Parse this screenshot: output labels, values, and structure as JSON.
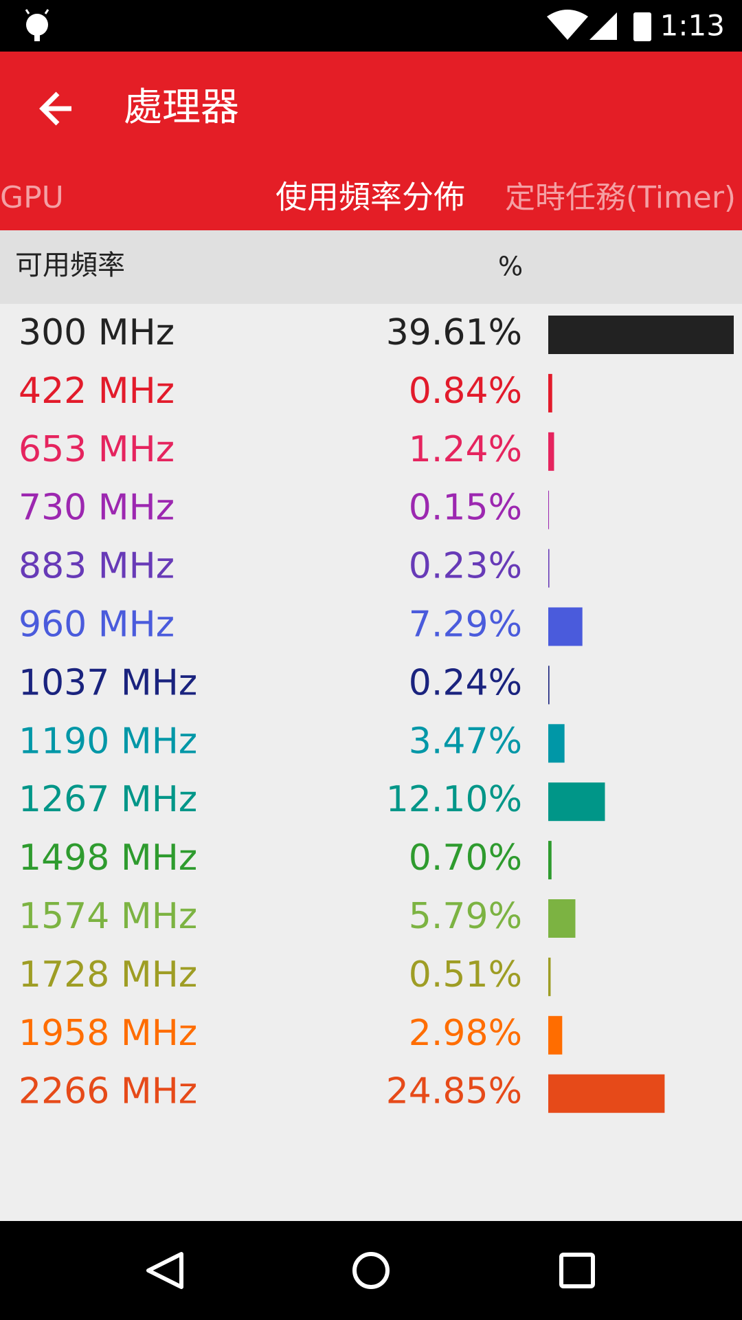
{
  "status_bar": {
    "time": "1:13"
  },
  "toolbar": {
    "title": "處理器"
  },
  "tabs": [
    "GPU",
    "使用頻率分佈",
    "定時任務(Timer)"
  ],
  "list": {
    "header": {
      "name": "可用頻率",
      "unit": "%"
    },
    "rows": [
      {
        "name": "300 MHz",
        "value": 39.61,
        "label": "39.61%",
        "color": "#222222"
      },
      {
        "name": "422 MHz",
        "value": 0.84,
        "label": "0.84%",
        "color": "#e21b2b"
      },
      {
        "name": "653 MHz",
        "value": 1.24,
        "label": "1.24%",
        "color": "#e5245e"
      },
      {
        "name": "730 MHz",
        "value": 0.15,
        "label": "0.15%",
        "color": "#9c27b0"
      },
      {
        "name": "883 MHz",
        "value": 0.23,
        "label": "0.23%",
        "color": "#673ab7"
      },
      {
        "name": "960 MHz",
        "value": 7.29,
        "label": "7.29%",
        "color": "#4a5bdc"
      },
      {
        "name": "1037 MHz",
        "value": 0.24,
        "label": "0.24%",
        "color": "#1a237e"
      },
      {
        "name": "1190 MHz",
        "value": 3.47,
        "label": "3.47%",
        "color": "#0097a7"
      },
      {
        "name": "1267 MHz",
        "value": 12.1,
        "label": "12.10%",
        "color": "#009688"
      },
      {
        "name": "1498 MHz",
        "value": 0.7,
        "label": "0.70%",
        "color": "#2e9b2e"
      },
      {
        "name": "1574 MHz",
        "value": 5.79,
        "label": "5.79%",
        "color": "#7cb342"
      },
      {
        "name": "1728 MHz",
        "value": 0.51,
        "label": "0.51%",
        "color": "#9e9d24"
      },
      {
        "name": "1958 MHz",
        "value": 2.98,
        "label": "2.98%",
        "color": "#ff6d00"
      },
      {
        "name": "2266 MHz",
        "value": 24.85,
        "label": "24.85%",
        "color": "#e64a19"
      }
    ]
  }
}
